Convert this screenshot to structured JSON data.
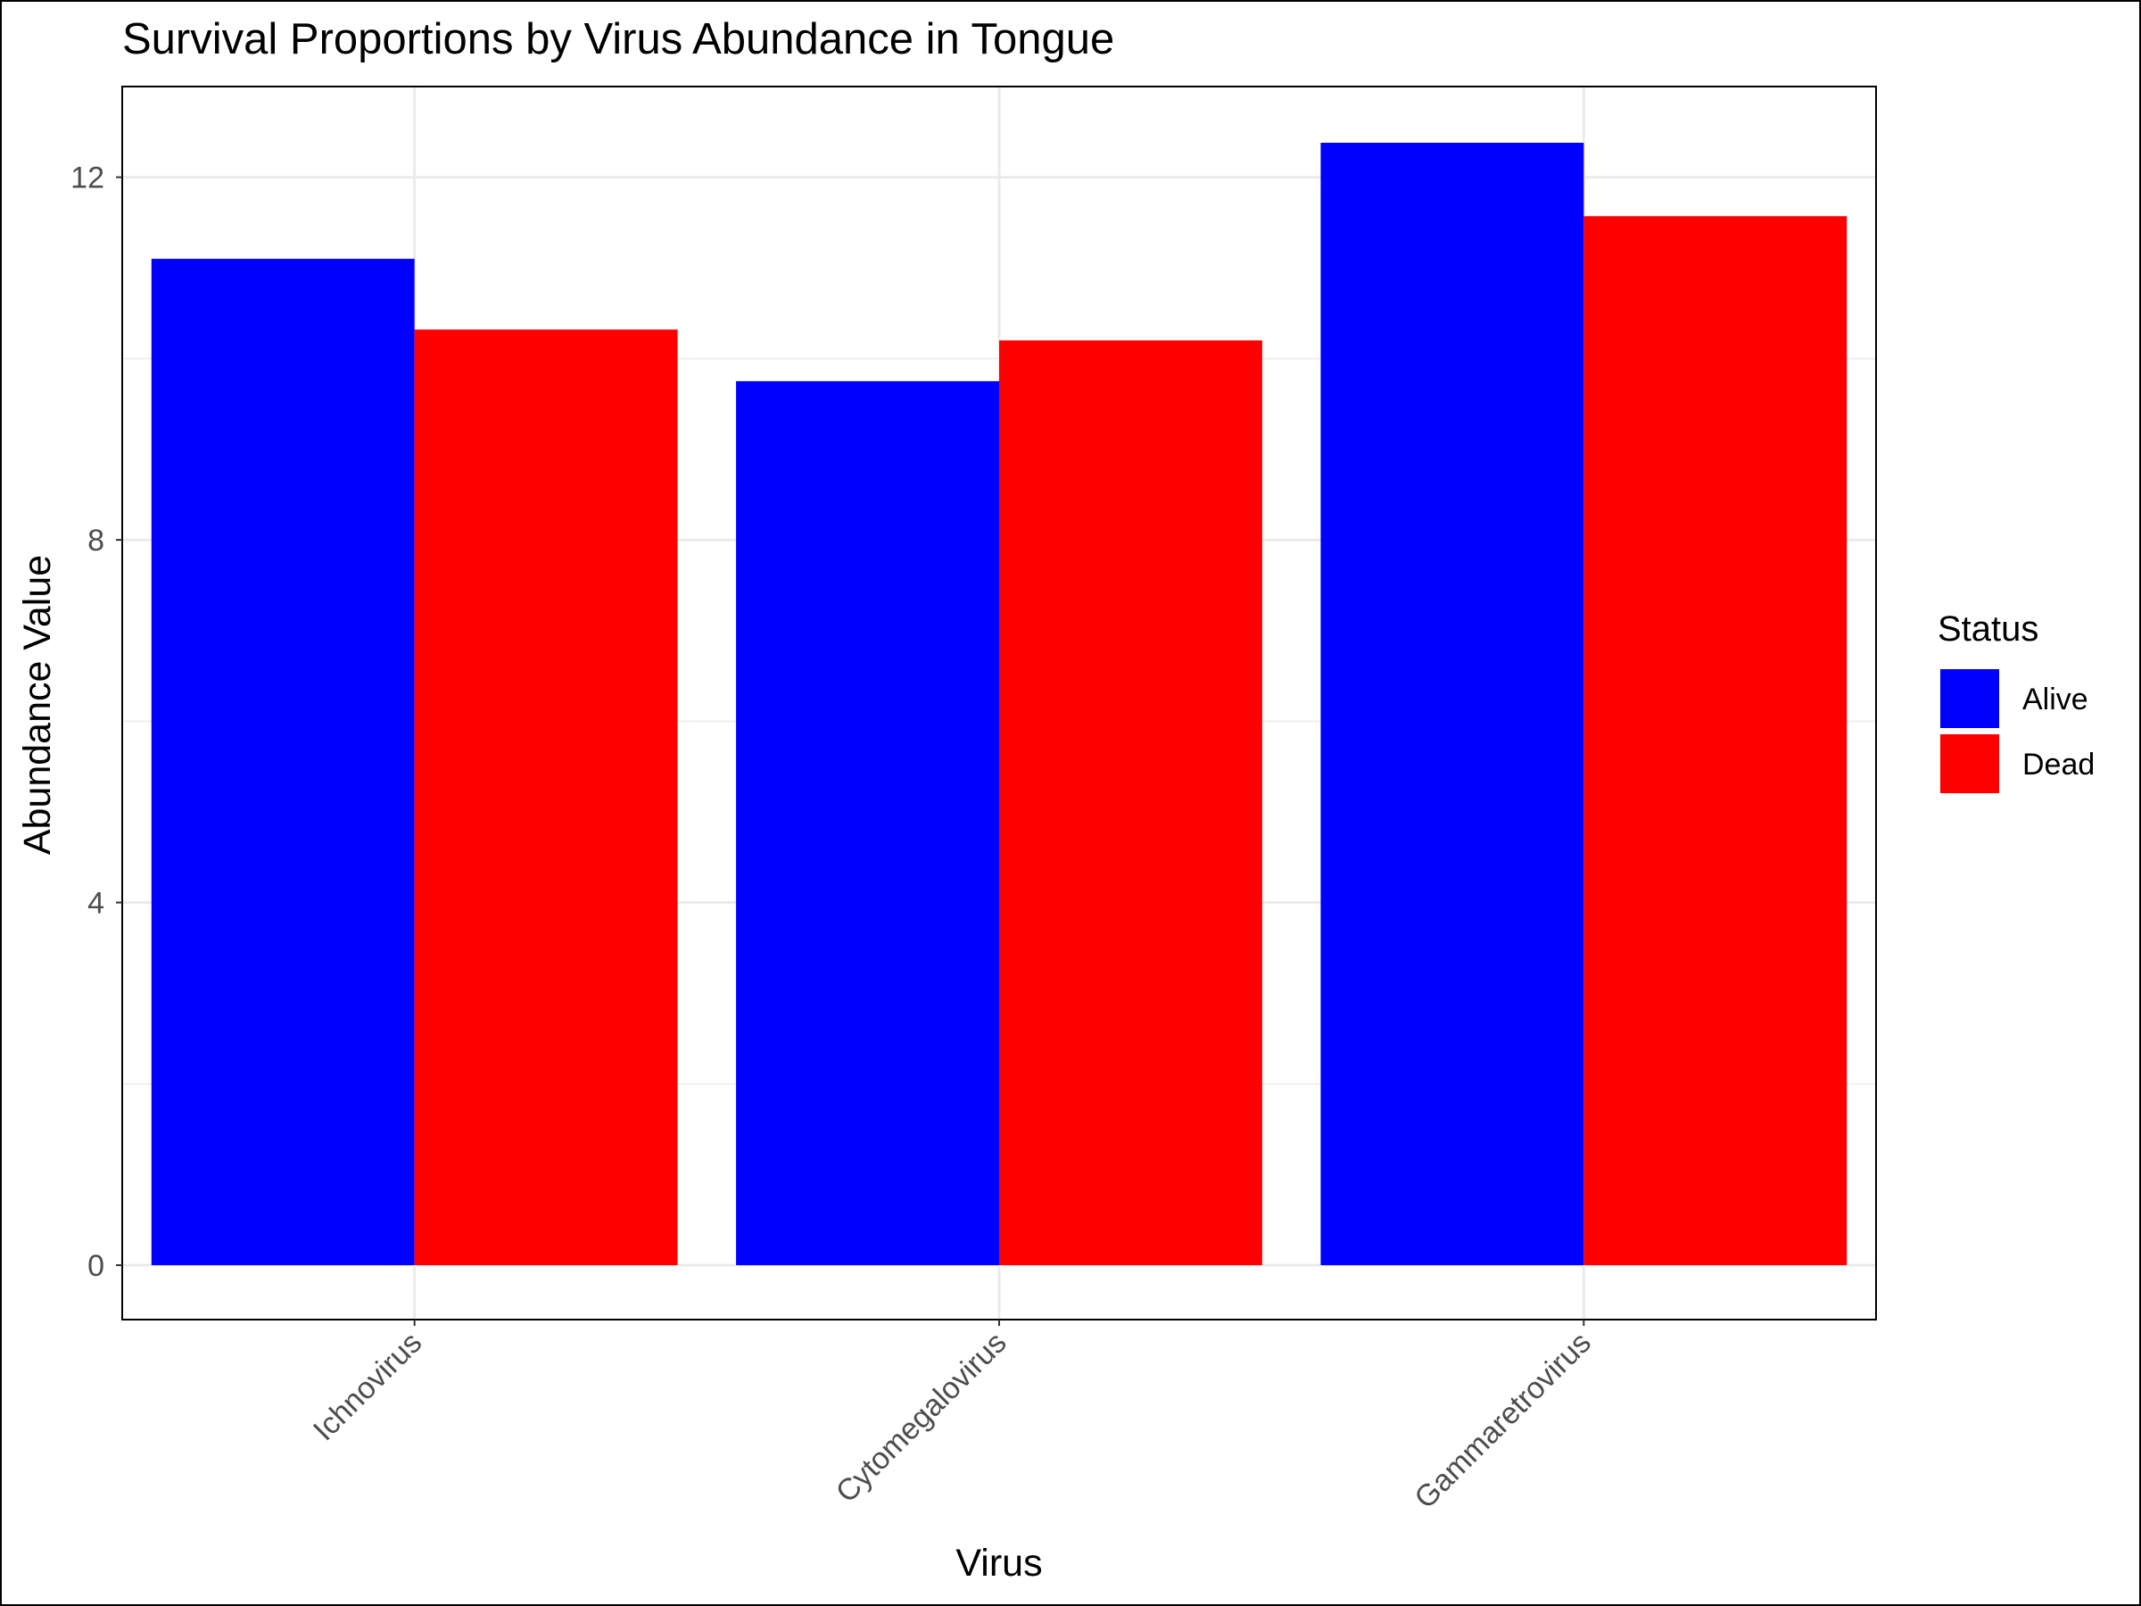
{
  "chart_data": {
    "type": "bar",
    "title": "Survival Proportions by Virus Abundance in Tongue",
    "xlabel": "Virus",
    "ylabel": "Abundance Value",
    "categories": [
      "Ichnovirus",
      "Cytomegalovirus",
      "Gammaretrovirus"
    ],
    "series": [
      {
        "name": "Alive",
        "color": "#0000ff",
        "values": [
          11.1,
          9.75,
          12.38
        ]
      },
      {
        "name": "Dead",
        "color": "#ff0000",
        "values": [
          10.32,
          10.2,
          11.57
        ]
      }
    ],
    "ylim": [
      -0.6,
      13.0
    ],
    "yticks": [
      "0",
      "4",
      "8",
      "12"
    ],
    "legend": {
      "title": "Status",
      "placement": "right",
      "entries": [
        "Alive",
        "Dead"
      ]
    },
    "grid": true,
    "theme": "white background, light grey gridlines, black panel border"
  }
}
